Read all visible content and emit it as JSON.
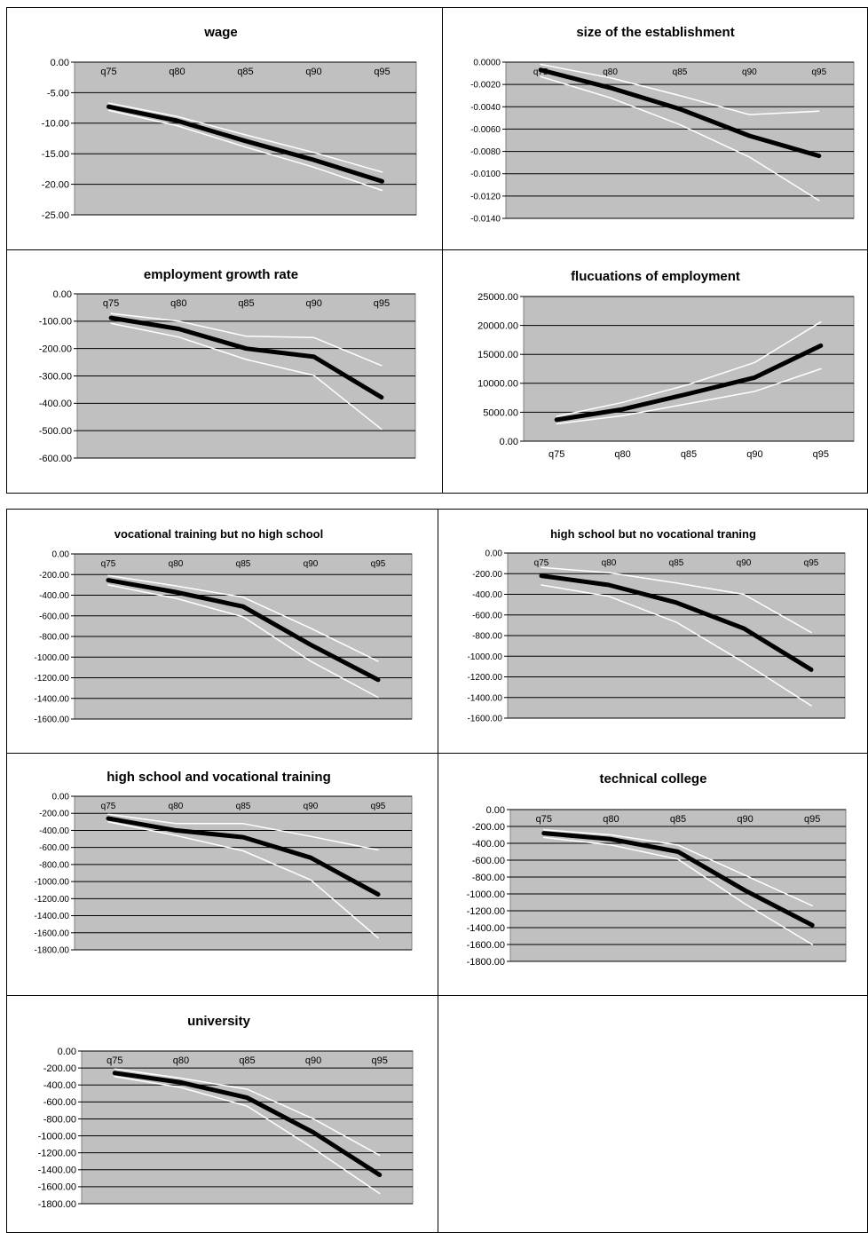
{
  "chart_data": [
    {
      "type": "line",
      "title": "wage",
      "categories": [
        "q75",
        "q80",
        "q85",
        "q90",
        "q95"
      ],
      "series": [
        {
          "role": "estimate",
          "values": [
            -7.3,
            -9.6,
            -12.9,
            -16.0,
            -19.5
          ]
        },
        {
          "role": "upper",
          "values": [
            -6.7,
            -8.9,
            -11.9,
            -14.8,
            -18.0
          ]
        },
        {
          "role": "lower",
          "values": [
            -7.9,
            -10.4,
            -13.9,
            -17.2,
            -21.0
          ]
        }
      ],
      "ylim": [
        -25,
        0
      ],
      "yticks": [
        "0.00",
        "-5.00",
        "-10.00",
        "-15.00",
        "-20.00",
        "-25.00"
      ],
      "xlabel_position": "top",
      "grid": true
    },
    {
      "type": "line",
      "title": "size of the establishment",
      "categories": [
        "q75",
        "q80",
        "q85",
        "q90",
        "q95"
      ],
      "series": [
        {
          "role": "estimate",
          "values": [
            -0.0007,
            -0.0023,
            -0.0042,
            -0.0066,
            -0.0084
          ]
        },
        {
          "role": "upper",
          "values": [
            -0.0002,
            -0.0014,
            -0.003,
            -0.0047,
            -0.0044
          ]
        },
        {
          "role": "lower",
          "values": [
            -0.0013,
            -0.0032,
            -0.0056,
            -0.0085,
            -0.0124
          ]
        }
      ],
      "ylim": [
        -0.014,
        0
      ],
      "yticks": [
        "0.0000",
        "-0.0020",
        "-0.0040",
        "-0.0060",
        "-0.0080",
        "-0.0100",
        "-0.0120",
        "-0.0140"
      ],
      "xlabel_position": "top",
      "grid": true
    },
    {
      "type": "line",
      "title": "employment growth rate",
      "categories": [
        "q75",
        "q80",
        "q85",
        "q90",
        "q95"
      ],
      "series": [
        {
          "role": "estimate",
          "values": [
            -88,
            -128,
            -200,
            -230,
            -378
          ]
        },
        {
          "role": "upper",
          "values": [
            -72,
            -100,
            -155,
            -160,
            -262
          ]
        },
        {
          "role": "lower",
          "values": [
            -108,
            -158,
            -240,
            -298,
            -495
          ]
        }
      ],
      "ylim": [
        -600,
        0
      ],
      "yticks": [
        "0.00",
        "-100.00",
        "-200.00",
        "-300.00",
        "-400.00",
        "-500.00",
        "-600.00"
      ],
      "xlabel_position": "top",
      "grid": true
    },
    {
      "type": "line",
      "title": "flucuations of employment",
      "categories": [
        "q75",
        "q80",
        "q85",
        "q90",
        "q95"
      ],
      "series": [
        {
          "role": "estimate",
          "values": [
            3700,
            5500,
            8200,
            11000,
            16500
          ]
        },
        {
          "role": "upper",
          "values": [
            4300,
            6700,
            9800,
            13600,
            20600
          ]
        },
        {
          "role": "lower",
          "values": [
            3000,
            4400,
            6500,
            8600,
            12500
          ]
        }
      ],
      "ylim": [
        0,
        25000
      ],
      "yticks": [
        "25000.00",
        "20000.00",
        "15000.00",
        "10000.00",
        "5000.00",
        "0.00"
      ],
      "xlabel_position": "bottom",
      "grid": true
    },
    {
      "type": "line",
      "title": "vocational training but no high school",
      "categories": [
        "q75",
        "q80",
        "q85",
        "q90",
        "q95"
      ],
      "series": [
        {
          "role": "estimate",
          "values": [
            -255,
            -370,
            -510,
            -880,
            -1220
          ]
        },
        {
          "role": "upper",
          "values": [
            -210,
            -310,
            -420,
            -720,
            -1040
          ]
        },
        {
          "role": "lower",
          "values": [
            -300,
            -430,
            -610,
            -1040,
            -1390
          ]
        }
      ],
      "ylim": [
        -1600,
        0
      ],
      "yticks": [
        "0.00",
        "-200.00",
        "-400.00",
        "-600.00",
        "-800.00",
        "-1000.00",
        "-1200.00",
        "-1400.00",
        "-1600.00"
      ],
      "xlabel_position": "top",
      "grid": true
    },
    {
      "type": "line",
      "title": "high school but no vocational traning",
      "categories": [
        "q75",
        "q80",
        "q85",
        "q90",
        "q95"
      ],
      "series": [
        {
          "role": "estimate",
          "values": [
            -220,
            -310,
            -480,
            -730,
            -1130
          ]
        },
        {
          "role": "upper",
          "values": [
            -140,
            -190,
            -290,
            -400,
            -770
          ]
        },
        {
          "role": "lower",
          "values": [
            -310,
            -420,
            -670,
            -1060,
            -1480
          ]
        }
      ],
      "ylim": [
        -1600,
        0
      ],
      "yticks": [
        "0.00",
        "-200.00",
        "-400.00",
        "-600.00",
        "-800.00",
        "-1000.00",
        "-1200.00",
        "-1400.00",
        "-1600.00"
      ],
      "xlabel_position": "top",
      "grid": true
    },
    {
      "type": "line",
      "title": "high school and vocational training",
      "categories": [
        "q75",
        "q80",
        "q85",
        "q90",
        "q95"
      ],
      "series": [
        {
          "role": "estimate",
          "values": [
            -260,
            -400,
            -480,
            -720,
            -1150
          ]
        },
        {
          "role": "upper",
          "values": [
            -210,
            -320,
            -320,
            -470,
            -630
          ]
        },
        {
          "role": "lower",
          "values": [
            -300,
            -460,
            -640,
            -980,
            -1660
          ]
        }
      ],
      "ylim": [
        -1800,
        0
      ],
      "yticks": [
        "0.00",
        "-200.00",
        "-400.00",
        "-600.00",
        "-800.00",
        "-1000.00",
        "-1200.00",
        "-1400.00",
        "-1600.00",
        "-1800.00"
      ],
      "xlabel_position": "top",
      "grid": true
    },
    {
      "type": "line",
      "title": "technical college",
      "categories": [
        "q75",
        "q80",
        "q85",
        "q90",
        "q95"
      ],
      "series": [
        {
          "role": "estimate",
          "values": [
            -280,
            -350,
            -500,
            -960,
            -1370
          ]
        },
        {
          "role": "upper",
          "values": [
            -240,
            -300,
            -420,
            -780,
            -1140
          ]
        },
        {
          "role": "lower",
          "values": [
            -330,
            -420,
            -590,
            -1120,
            -1600
          ]
        }
      ],
      "ylim": [
        -1800,
        0
      ],
      "yticks": [
        "0.00",
        "-200.00",
        "-400.00",
        "-600.00",
        "-800.00",
        "-1000.00",
        "-1200.00",
        "-1400.00",
        "-1600.00",
        "-1800.00"
      ],
      "xlabel_position": "top",
      "grid": true
    },
    {
      "type": "line",
      "title": "university",
      "categories": [
        "q75",
        "q80",
        "q85",
        "q90",
        "q95"
      ],
      "series": [
        {
          "role": "estimate",
          "values": [
            -260,
            -370,
            -550,
            -960,
            -1460
          ]
        },
        {
          "role": "upper",
          "values": [
            -210,
            -320,
            -450,
            -800,
            -1230
          ]
        },
        {
          "role": "lower",
          "values": [
            -300,
            -430,
            -650,
            -1150,
            -1680
          ]
        }
      ],
      "ylim": [
        -1800,
        0
      ],
      "yticks": [
        "0.00",
        "-200.00",
        "-400.00",
        "-600.00",
        "-800.00",
        "-1000.00",
        "-1200.00",
        "-1400.00",
        "-1600.00",
        "-1800.00"
      ],
      "xlabel_position": "top",
      "grid": true
    }
  ],
  "colors": {
    "plot_background": "#c0c0c0",
    "estimate_line": "#000000",
    "band_lines": "#ffffff",
    "gridline": "#000000"
  }
}
